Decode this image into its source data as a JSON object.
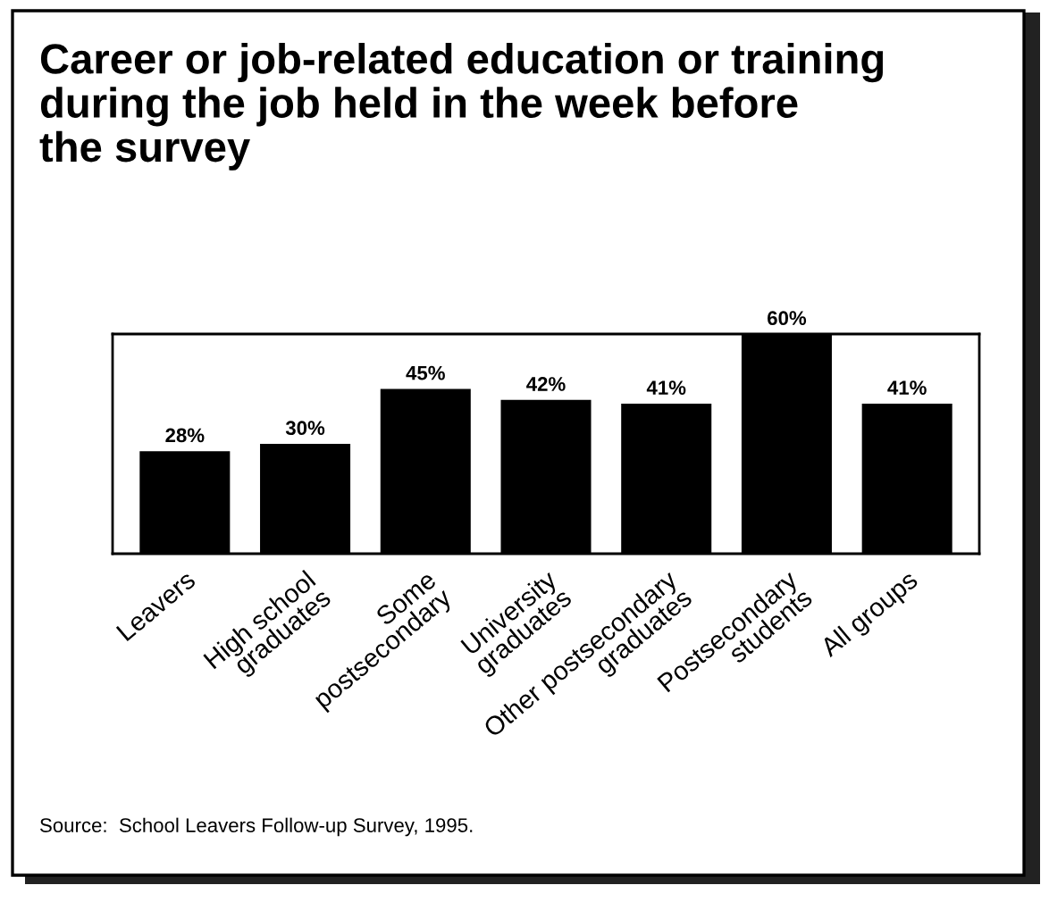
{
  "chart_data": {
    "type": "bar",
    "title": "Career or job-related education or training\nduring the job held in the week before\nthe survey",
    "categories": [
      "Leavers",
      "High school\ngraduates",
      "Some\npostsecondary",
      "University\ngraduates",
      "Other postsecondary\ngraduates",
      "Postsecondary\nstudents",
      "All groups"
    ],
    "values": [
      28,
      30,
      45,
      42,
      41,
      60,
      41
    ],
    "value_labels": [
      "28%",
      "30%",
      "45%",
      "42%",
      "41%",
      "60%",
      "41%"
    ],
    "color": "#000000",
    "annotations": [
      "Source:  School Leavers Follow-up Survey, 1995."
    ]
  }
}
